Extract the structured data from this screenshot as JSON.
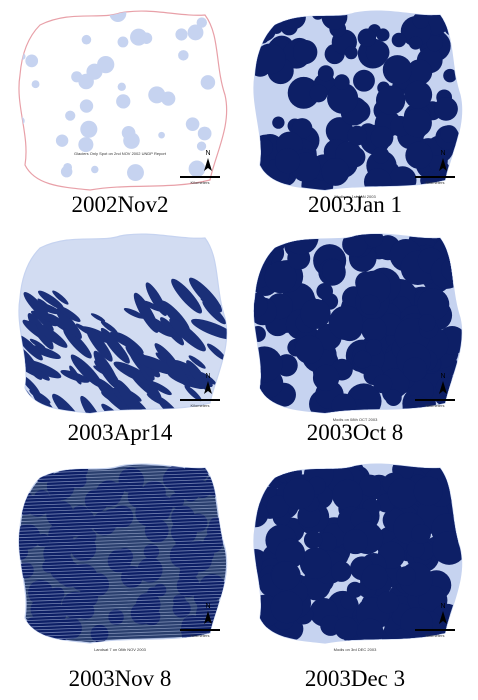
{
  "figure": {
    "panels": [
      {
        "caption": "2002Nov2",
        "note": "Glaciers Only Spot on 2nd NOV 2002 UNDP Report"
      },
      {
        "caption": "2003Jan 1",
        "note": "Modis on 1st JAN 2003"
      },
      {
        "caption": "2003Apr14"
      },
      {
        "caption": "2003Oct 8",
        "note": "Modis on 08th OCT 2003"
      },
      {
        "caption": "2003Nov 8",
        "note": "Landsat 7 on 08th NOV 2003"
      },
      {
        "caption": "2003Dec 3",
        "note": "Modis on 3rd DEC 2003"
      }
    ],
    "north_label": "N",
    "scale_label": "Kilometers"
  }
}
